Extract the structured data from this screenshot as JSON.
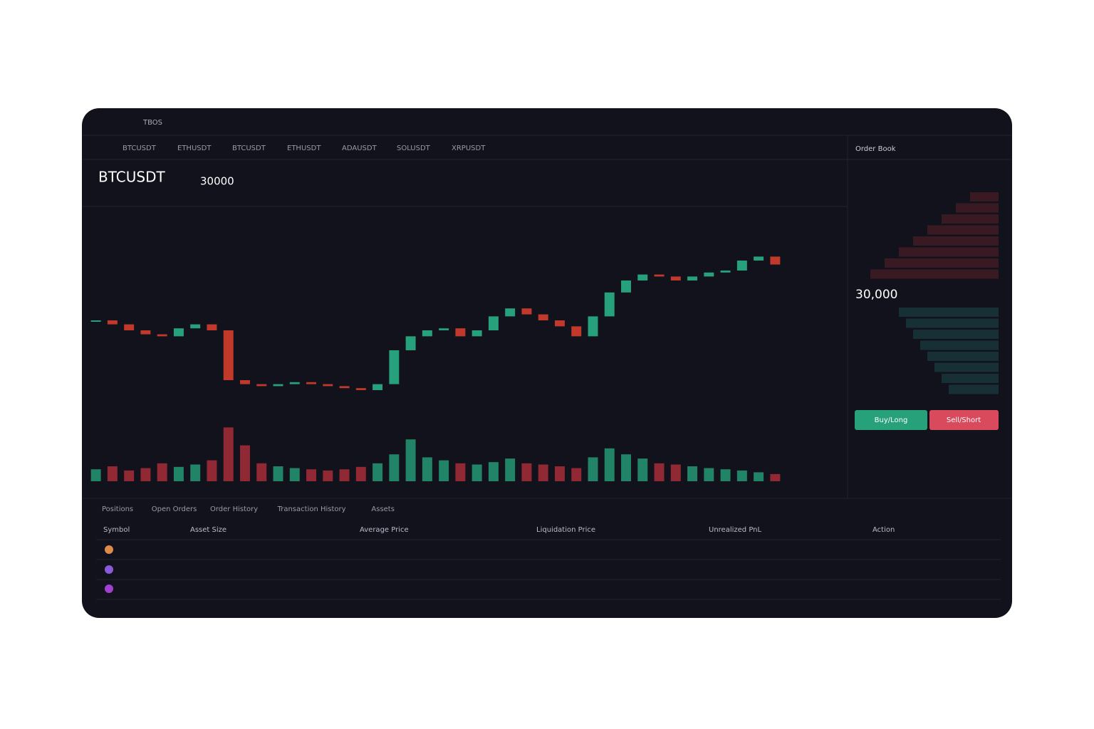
{
  "header": {
    "brand": "TBOS",
    "tabs": [
      "BTCUSDT",
      "ETHUSDT",
      "BTCUSDT",
      "ETHUSDT",
      "ADAUSDT",
      "SOLUSDT",
      "XRPUSDT"
    ]
  },
  "ticker": {
    "symbol": "BTCUSDT",
    "price": "30000"
  },
  "chart": {
    "closes": [
      60,
      58,
      55,
      53,
      52,
      56,
      58,
      55,
      30,
      28,
      27,
      28,
      29,
      28,
      27,
      26,
      25,
      28,
      45,
      52,
      55,
      56,
      52,
      55,
      62,
      66,
      63,
      60,
      57,
      52,
      62,
      74,
      80,
      83,
      82,
      80,
      82,
      84,
      85,
      90,
      92,
      88
    ],
    "volumes": [
      20,
      25,
      18,
      22,
      30,
      24,
      28,
      35,
      90,
      60,
      30,
      25,
      22,
      20,
      18,
      20,
      24,
      30,
      45,
      70,
      40,
      35,
      30,
      28,
      32,
      38,
      30,
      28,
      25,
      22,
      40,
      55,
      45,
      38,
      30,
      28,
      25,
      22,
      20,
      18,
      15,
      12
    ],
    "ylim": [
      20,
      95
    ],
    "vlim": [
      0,
      100
    ]
  },
  "orderbook": {
    "title": "Order Book",
    "mid": "30,000",
    "buy": "Buy/Long",
    "sell": "Sell/Short"
  },
  "bottom": {
    "tabs": [
      "Positions",
      "Open Orders",
      "Order History",
      "Transaction History",
      "Assets"
    ],
    "headers": [
      "Symbol",
      "Asset Size",
      "Average Price",
      "Liquidation Price",
      "Unrealized PnL",
      "Action"
    ]
  }
}
